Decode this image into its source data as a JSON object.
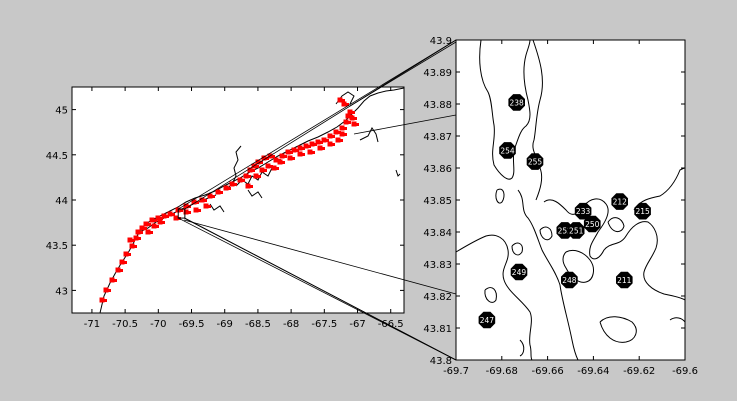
{
  "figure": {
    "background": "#c8c8c8"
  },
  "chart_data": [
    {
      "type": "scatter",
      "title": "",
      "xlabel": "",
      "ylabel": "",
      "xlim": [
        -71.3,
        -66.3
      ],
      "ylim": [
        42.75,
        45.25
      ],
      "xticks": [
        -71,
        -70.5,
        -70,
        -69.5,
        -69,
        -68.5,
        -68,
        -67.5,
        -67,
        -66.5
      ],
      "yticks": [
        43,
        43.5,
        44,
        44.5,
        45
      ],
      "xtick_labels": [
        "-71",
        "-70.5",
        "-70",
        "-69.5",
        "-69",
        "-68.5",
        "-68",
        "-67.5",
        "-67",
        "-66.5"
      ],
      "ytick_labels": [
        "43",
        "43.5",
        "44",
        "44.5",
        "45"
      ],
      "grid": false,
      "marker_color": "#ff0000",
      "line_color": "#000000",
      "zoom_box": {
        "x": [
          -69.7,
          -69.6
        ],
        "y": [
          43.8,
          43.9
        ]
      }
    },
    {
      "type": "scatter",
      "title": "",
      "xlabel": "",
      "ylabel": "",
      "xlim": [
        -69.7,
        -69.6
      ],
      "ylim": [
        43.8,
        43.9
      ],
      "xticks": [
        -69.7,
        -69.68,
        -69.66,
        -69.64,
        -69.62,
        -69.6
      ],
      "yticks": [
        43.8,
        43.81,
        43.82,
        43.83,
        43.84,
        43.85,
        43.86,
        43.87,
        43.88,
        43.89,
        43.9
      ],
      "xtick_labels": [
        "-69.7",
        "-69.68",
        "-69.66",
        "-69.64",
        "-69.62",
        "-69.6"
      ],
      "ytick_labels": [
        "43.8",
        "43.81",
        "43.82",
        "43.83",
        "43.84",
        "43.85",
        "43.86",
        "43.87",
        "43.88",
        "43.89",
        "43.9"
      ],
      "grid": false,
      "marker_color": "#000000",
      "label_color": "#ffffff",
      "points": [
        {
          "label": "238",
          "x": -69.6735,
          "y": 43.8805
        },
        {
          "label": "254",
          "x": -69.6775,
          "y": 43.8655
        },
        {
          "label": "255",
          "x": -69.6655,
          "y": 43.862
        },
        {
          "label": "233",
          "x": -69.6445,
          "y": 43.8465
        },
        {
          "label": "212",
          "x": -69.6285,
          "y": 43.8495
        },
        {
          "label": "215",
          "x": -69.6185,
          "y": 43.8465
        },
        {
          "label": "250",
          "x": -69.6405,
          "y": 43.8425
        },
        {
          "label": "252",
          "x": -69.6525,
          "y": 43.8405
        },
        {
          "label": "251",
          "x": -69.6475,
          "y": 43.8405
        },
        {
          "label": "249",
          "x": -69.6725,
          "y": 43.8275
        },
        {
          "label": "248",
          "x": -69.6505,
          "y": 43.825
        },
        {
          "label": "211",
          "x": -69.6265,
          "y": 43.825
        },
        {
          "label": "247",
          "x": -69.6865,
          "y": 43.8125
        }
      ]
    }
  ]
}
